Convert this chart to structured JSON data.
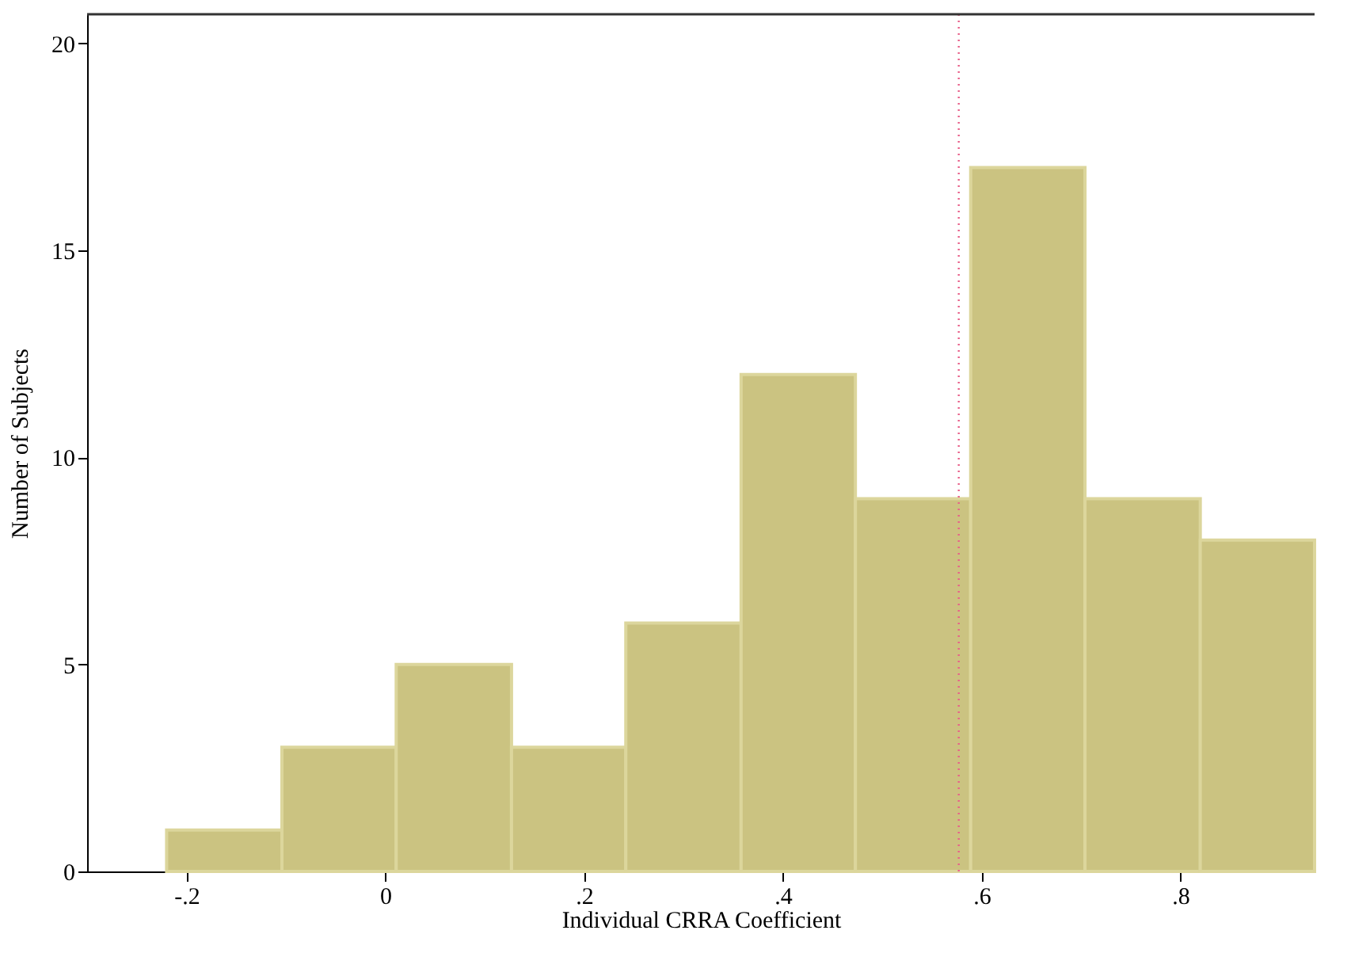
{
  "chart_data": {
    "type": "histogram",
    "xlabel": "Individual CRRA Coefficient",
    "ylabel": "Number of Subjects",
    "bins": [
      -0.22,
      -0.104,
      0.011,
      0.127,
      0.242,
      0.358,
      0.473,
      0.589,
      0.704,
      0.82,
      0.935
    ],
    "values": [
      1,
      3,
      5,
      3,
      6,
      12,
      9,
      17,
      9,
      8
    ],
    "color": "#cbc381",
    "xlim": [
      -0.3,
      0.935
    ],
    "ylim": [
      0,
      20.7
    ],
    "xticks": [
      {
        "value": -0.2,
        "label": "-.2"
      },
      0,
      {
        "value": 0.2,
        "label": ".2"
      },
      {
        "value": 0.4,
        "label": ".4"
      },
      {
        "value": 0.6,
        "label": ".6"
      },
      {
        "value": 0.8,
        "label": ".8"
      }
    ],
    "yticks": [
      0,
      5,
      10,
      15,
      20
    ],
    "ref_lines": [
      {
        "axis": "x",
        "value": 0.577,
        "color": "#e8608a",
        "line_style": "dotted"
      }
    ],
    "grid": false
  }
}
